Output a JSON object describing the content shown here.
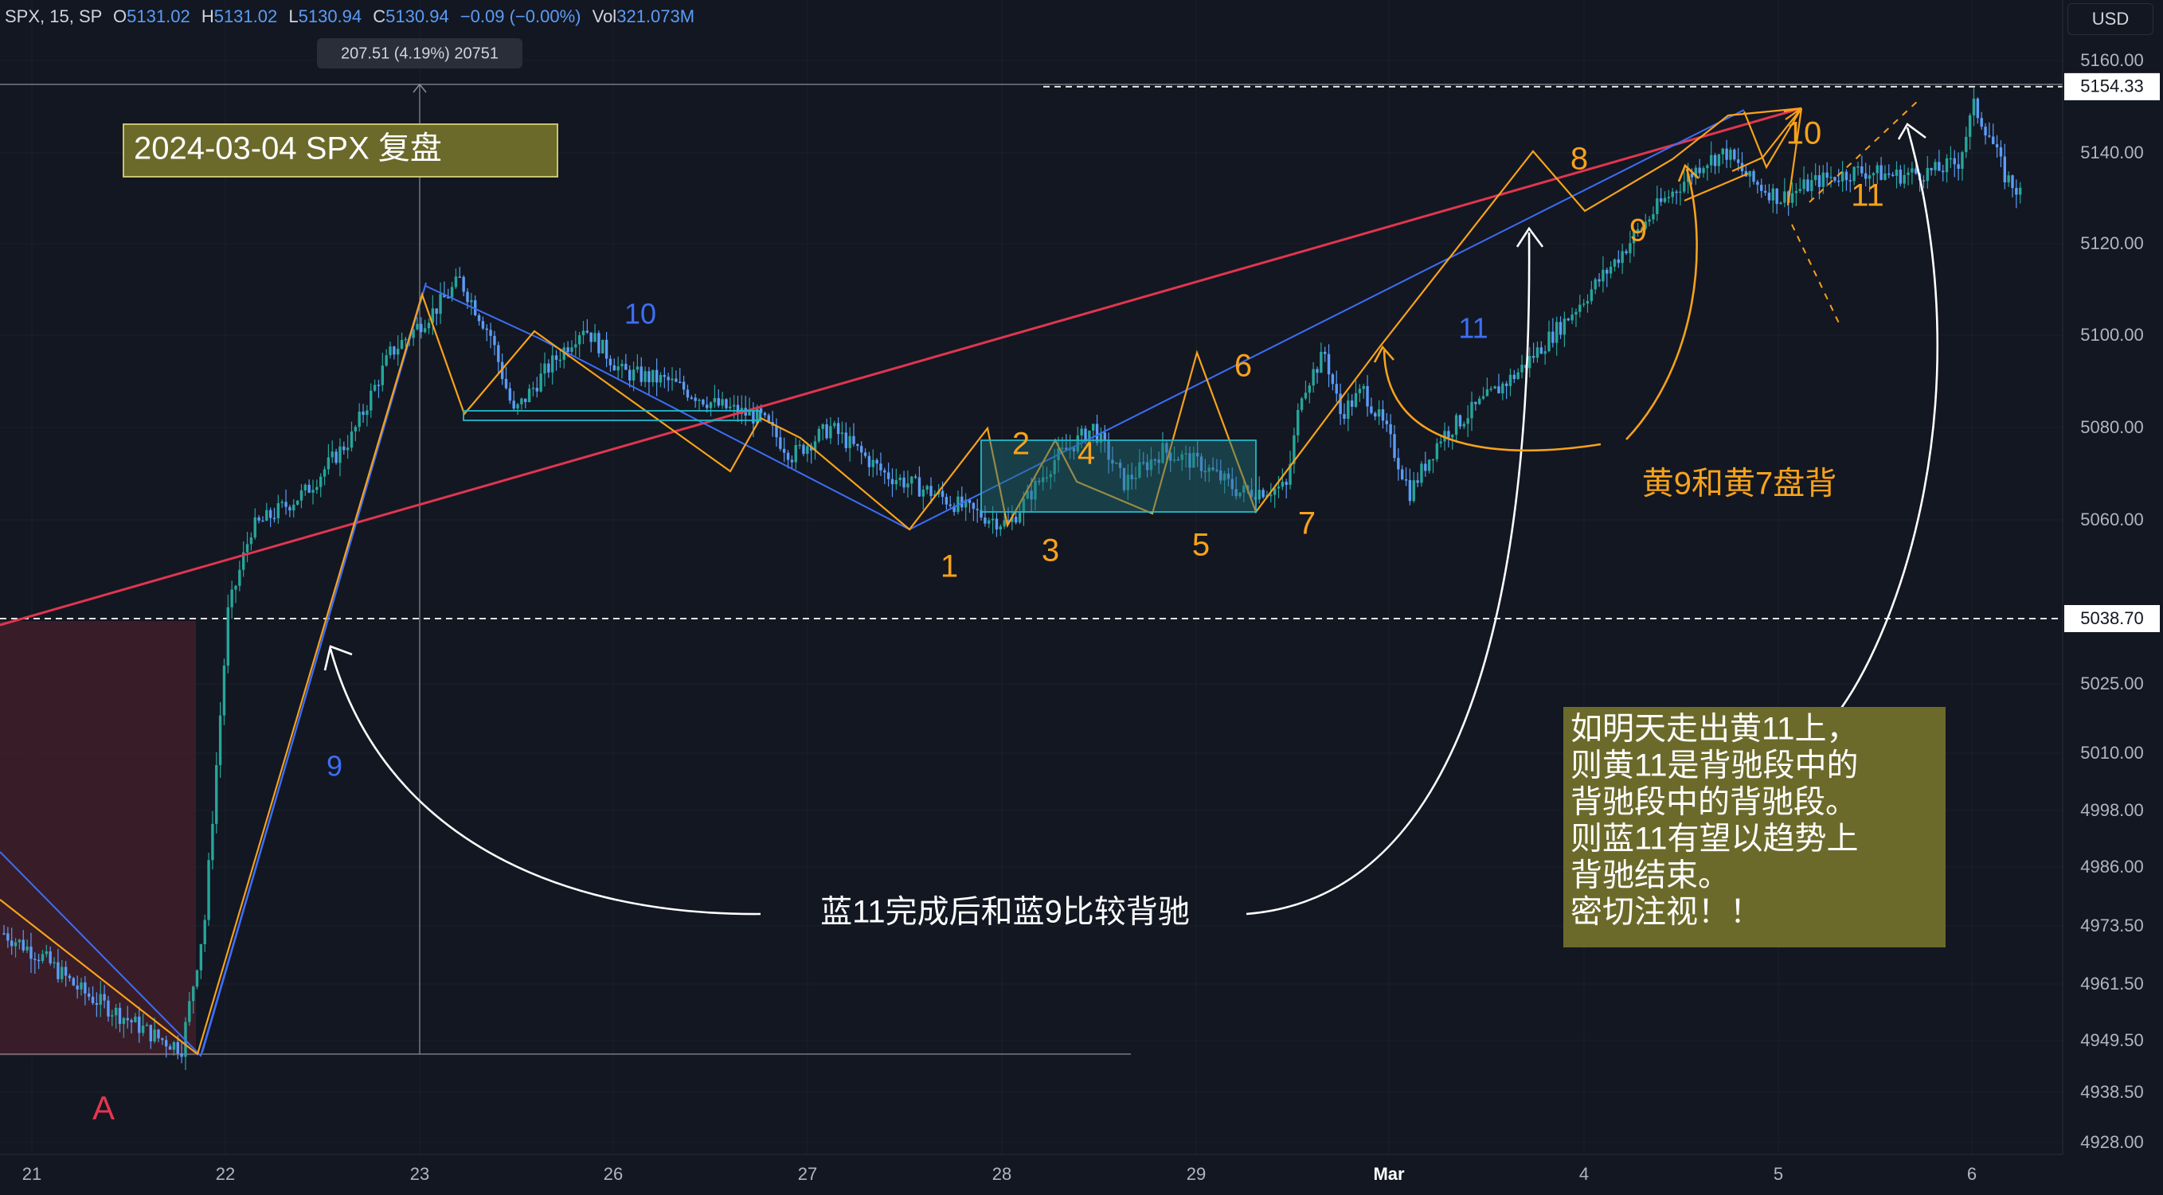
{
  "legend": {
    "symbol": "SPX, 15, SP",
    "open_label": "O",
    "open": "5131.02",
    "high_label": "H",
    "high": "5131.02",
    "low_label": "L",
    "low": "5130.94",
    "close_label": "C",
    "close": "5130.94",
    "change": "−0.09 (−0.00%)",
    "vol_label": "Vol",
    "vol": "321.073M"
  },
  "currency_button": "USD",
  "colors": {
    "background": "#131722",
    "up": "#26a69a",
    "down": "#5b9cf6",
    "orange": "#f7a21b",
    "blue_line": "#3d6ef5",
    "red_line": "#e0364f",
    "cyan_box": "#22b8c9",
    "note_bg": "#6b6a2a"
  },
  "chart_data": {
    "type": "candlestick",
    "symbol": "SPX",
    "interval": "15",
    "y_axis": {
      "ticks": [
        5160.0,
        5140.0,
        5120.0,
        5100.0,
        5080.0,
        5060.0,
        5038.7,
        5025.0,
        5010.0,
        4998.0,
        4986.0,
        4973.5,
        4961.5,
        4949.5,
        4938.5,
        4928.0
      ],
      "tick_labels": [
        "5160.00",
        "5140.00",
        "5120.00",
        "5100.00",
        "5080.00",
        "5060.00",
        "5038.70",
        "5025.00",
        "5010.00",
        "4998.00",
        "4986.00",
        "4973.50",
        "4961.50",
        "4949.50",
        "4938.50",
        "4928.00"
      ],
      "highlight_labels": [
        "5154.33",
        "5038.70"
      ]
    },
    "x_axis": {
      "tick_labels": [
        "21",
        "22",
        "23",
        "26",
        "27",
        "28",
        "29",
        "Mar",
        "4",
        "5",
        "6"
      ],
      "bold": [
        "Mar"
      ]
    },
    "horizontal_levels": [
      5154.33,
      5038.7
    ],
    "measure_label": "207.51 (4.19%) 20751",
    "price_path": [
      [
        0,
        4972
      ],
      [
        10,
        4967
      ],
      [
        20,
        4960
      ],
      [
        30,
        4955
      ],
      [
        40,
        4950
      ],
      [
        46,
        4948
      ],
      [
        52,
        4975
      ],
      [
        58,
        5040
      ],
      [
        64,
        5058
      ],
      [
        78,
        5066
      ],
      [
        90,
        5078
      ],
      [
        100,
        5096
      ],
      [
        112,
        5106
      ],
      [
        118,
        5112
      ],
      [
        126,
        5100
      ],
      [
        132,
        5083
      ],
      [
        140,
        5092
      ],
      [
        150,
        5102
      ],
      [
        160,
        5092
      ],
      [
        172,
        5090
      ],
      [
        184,
        5085
      ],
      [
        196,
        5082
      ],
      [
        204,
        5074
      ],
      [
        214,
        5080
      ],
      [
        228,
        5070
      ],
      [
        240,
        5066
      ],
      [
        250,
        5062
      ],
      [
        260,
        5059
      ],
      [
        272,
        5073
      ],
      [
        282,
        5080
      ],
      [
        290,
        5068
      ],
      [
        300,
        5075
      ],
      [
        310,
        5072
      ],
      [
        320,
        5066
      ],
      [
        332,
        5067
      ],
      [
        336,
        5088
      ],
      [
        342,
        5096
      ],
      [
        346,
        5083
      ],
      [
        352,
        5088
      ],
      [
        358,
        5079
      ],
      [
        364,
        5066
      ],
      [
        372,
        5078
      ],
      [
        382,
        5085
      ],
      [
        392,
        5092
      ],
      [
        404,
        5103
      ],
      [
        416,
        5115
      ],
      [
        428,
        5128
      ],
      [
        440,
        5138
      ],
      [
        446,
        5140
      ],
      [
        452,
        5134
      ],
      [
        460,
        5130
      ],
      [
        470,
        5134
      ],
      [
        480,
        5136
      ],
      [
        490,
        5135
      ],
      [
        500,
        5136
      ],
      [
        506,
        5138
      ],
      [
        510,
        5150
      ],
      [
        514,
        5144
      ],
      [
        518,
        5135
      ],
      [
        522,
        5131
      ]
    ],
    "annotations": {
      "title_box": "2024-03-04 SPX 复盘",
      "corner_label": "A",
      "orange_labels": [
        "1",
        "2",
        "3",
        "4",
        "5",
        "6",
        "7",
        "8",
        "9",
        "10",
        "11"
      ],
      "blue_labels": [
        "9",
        "10",
        "11"
      ],
      "divergence_note_1": "蓝11完成后和蓝9比较背驰",
      "divergence_note_2": "黄9和黄7盘背",
      "note_box_lines": [
        "如明天走出黄11上，",
        "则黄11是背驰段中的",
        "背驰段中的背驰段。",
        "则蓝11有望以趋势上",
        "背驰结束。",
        "密切注视！！"
      ]
    }
  }
}
